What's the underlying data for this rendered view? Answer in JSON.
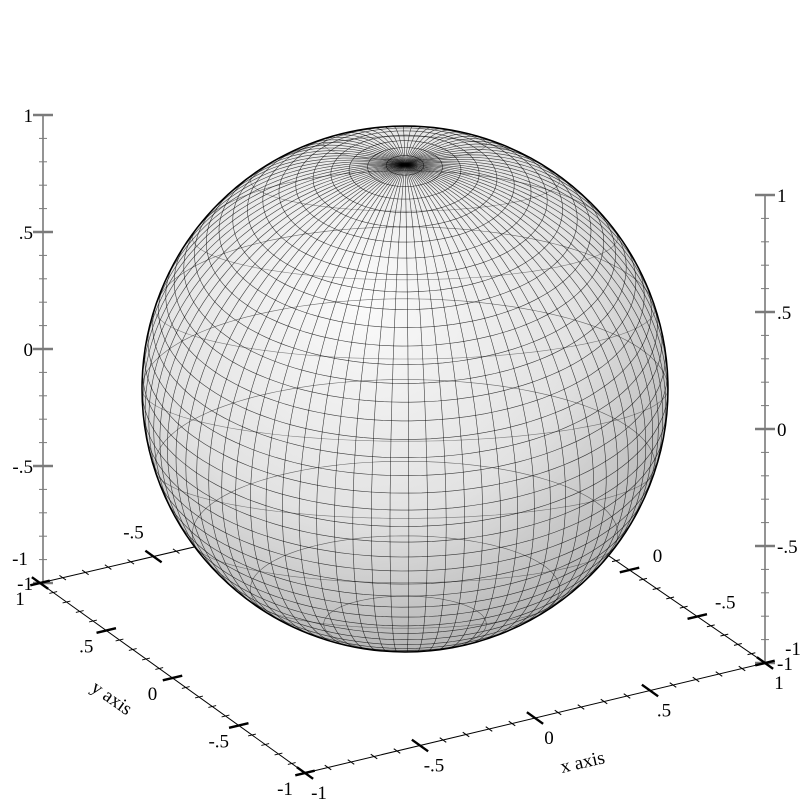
{
  "chart_data": {
    "type": "surface",
    "surface": "sphere",
    "center": [
      0,
      0,
      0
    ],
    "radius": 1,
    "xlabel": "x axis",
    "ylabel": "y axis",
    "zlabel": "",
    "xlim": [
      -1,
      1
    ],
    "ylim": [
      -1,
      1
    ],
    "zlim": [
      -1,
      1
    ],
    "x_ticks": [
      "-1",
      "-.5",
      "0",
      ".5",
      "1"
    ],
    "y_ticks": [
      "1",
      ".5",
      "0",
      "-.5",
      "-1"
    ],
    "z_ticks": [
      "-1",
      "-.5",
      "0",
      ".5",
      "1"
    ],
    "x_back_ticks": [
      "-1",
      "-.5"
    ],
    "y_back_ticks": [
      "-1",
      "-.5",
      "0"
    ],
    "z_right_ticks": [
      "-1",
      "-.5",
      "0",
      ".5",
      "1"
    ],
    "colors": {
      "surface_light": "#fbfbfb",
      "surface_dark": "#a9a9a9",
      "mesh": "#000000",
      "z_axis": "#7a7a7a"
    }
  }
}
